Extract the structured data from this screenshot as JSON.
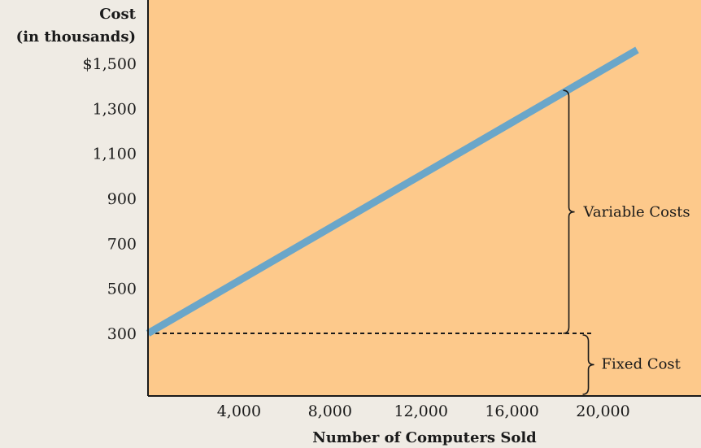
{
  "chart_data": {
    "type": "line",
    "ylabel_lines": [
      "Cost",
      "(in thousands)"
    ],
    "xlabel": "Number of Computers Sold",
    "x_ticks": [
      4000,
      8000,
      12000,
      16000,
      20000
    ],
    "x_tick_labels": [
      "4,000",
      "8,000",
      "12,000",
      "16,000",
      "20,000"
    ],
    "y_ticks": [
      300,
      500,
      700,
      900,
      1100,
      1300,
      1500
    ],
    "y_tick_labels": [
      "300",
      "500",
      "700",
      "900",
      "1,100",
      "1,300",
      "$1,500"
    ],
    "xlim": [
      0,
      24000
    ],
    "ylim": [
      0,
      1600
    ],
    "series": [
      {
        "x": [
          0,
          21500
        ],
        "y": [
          300,
          1560
        ]
      }
    ],
    "fixed_cost_level": 300,
    "bracket_x": 18500,
    "variable_bracket_top": 1380,
    "fixed_bracket_bottom": 0,
    "annotations": {
      "variable": "Variable Costs",
      "fixed": "Fixed Cost"
    },
    "grid": false,
    "colors": {
      "plot_bg": "#fdc98b",
      "page_bg": "#efebe4",
      "line": "#6aa6c9",
      "axis": "#1a1a1a"
    }
  }
}
